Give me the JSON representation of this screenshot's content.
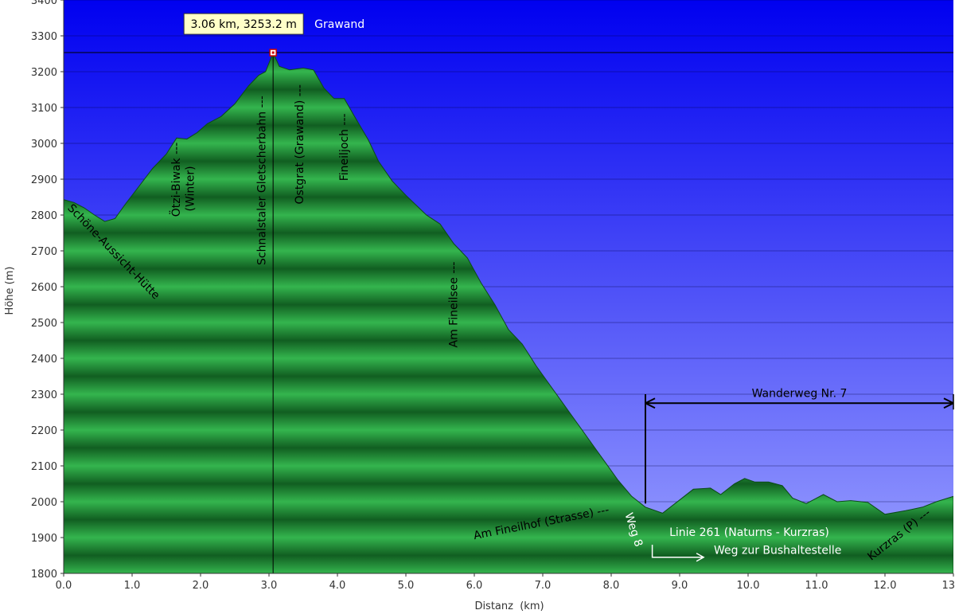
{
  "chart_data": {
    "type": "area",
    "xlabel": "Distanz  (km)",
    "ylabel": "Höhe (m)",
    "xlim": [
      0,
      13
    ],
    "ylim": [
      1800,
      3400
    ],
    "x_ticks": [
      "0.0",
      "1.0",
      "2.0",
      "3.0",
      "4.0",
      "5.0",
      "6.0",
      "7.0",
      "8.0",
      "9.0",
      "10.0",
      "11.0",
      "12.0",
      "13.0"
    ],
    "y_ticks": [
      "1800",
      "1900",
      "2000",
      "2100",
      "2200",
      "2300",
      "2400",
      "2500",
      "2600",
      "2700",
      "2800",
      "2900",
      "3000",
      "3100",
      "3200",
      "3300",
      "3400"
    ],
    "grid": true,
    "colors": {
      "sky_top": "#0000f0",
      "sky_bottom": "#9aa0ff",
      "profile_light": "#2fb04a",
      "profile_dark": "#0f5c1e"
    },
    "profile": [
      [
        0.0,
        2843
      ],
      [
        0.15,
        2835
      ],
      [
        0.3,
        2820
      ],
      [
        0.45,
        2800
      ],
      [
        0.6,
        2782
      ],
      [
        0.75,
        2790
      ],
      [
        0.9,
        2830
      ],
      [
        1.1,
        2880
      ],
      [
        1.3,
        2930
      ],
      [
        1.5,
        2970
      ],
      [
        1.65,
        3015
      ],
      [
        1.8,
        3012
      ],
      [
        1.95,
        3030
      ],
      [
        2.1,
        3055
      ],
      [
        2.3,
        3075
      ],
      [
        2.5,
        3110
      ],
      [
        2.7,
        3160
      ],
      [
        2.85,
        3190
      ],
      [
        2.95,
        3200
      ],
      [
        3.06,
        3253
      ],
      [
        3.15,
        3215
      ],
      [
        3.3,
        3205
      ],
      [
        3.5,
        3210
      ],
      [
        3.65,
        3205
      ],
      [
        3.8,
        3155
      ],
      [
        3.95,
        3125
      ],
      [
        4.1,
        3125
      ],
      [
        4.25,
        3075
      ],
      [
        4.45,
        3010
      ],
      [
        4.6,
        2950
      ],
      [
        4.8,
        2895
      ],
      [
        5.0,
        2855
      ],
      [
        5.3,
        2800
      ],
      [
        5.5,
        2775
      ],
      [
        5.7,
        2720
      ],
      [
        5.9,
        2680
      ],
      [
        6.1,
        2610
      ],
      [
        6.3,
        2550
      ],
      [
        6.5,
        2480
      ],
      [
        6.7,
        2440
      ],
      [
        6.9,
        2380
      ],
      [
        7.2,
        2300
      ],
      [
        7.5,
        2220
      ],
      [
        7.8,
        2140
      ],
      [
        8.1,
        2060
      ],
      [
        8.3,
        2015
      ],
      [
        8.5,
        1985
      ],
      [
        8.75,
        1968
      ],
      [
        9.0,
        2005
      ],
      [
        9.2,
        2035
      ],
      [
        9.45,
        2038
      ],
      [
        9.6,
        2020
      ],
      [
        9.8,
        2050
      ],
      [
        9.95,
        2065
      ],
      [
        10.1,
        2055
      ],
      [
        10.3,
        2055
      ],
      [
        10.5,
        2045
      ],
      [
        10.65,
        2010
      ],
      [
        10.85,
        1995
      ],
      [
        11.1,
        2020
      ],
      [
        11.3,
        2000
      ],
      [
        11.5,
        2003
      ],
      [
        11.75,
        1998
      ],
      [
        12.0,
        1965
      ],
      [
        12.3,
        1975
      ],
      [
        12.55,
        1985
      ],
      [
        12.75,
        2000
      ],
      [
        13.0,
        2015
      ]
    ],
    "marker": {
      "x": 3.06,
      "y": 3253.2,
      "label": "3.06 km, 3253.2 m",
      "name": "Grawand"
    },
    "annotations": [
      {
        "text": "Schöne-Aussicht-Hütte",
        "x": 0.05,
        "y": 2818,
        "rotate": 46,
        "color": "dark"
      },
      {
        "text": "Ötzi-Biwak ---",
        "x": 1.7,
        "y": 2795,
        "rotate": -90,
        "color": "dark"
      },
      {
        "text": "(Winter)",
        "x": 1.9,
        "y": 2810,
        "rotate": -90,
        "color": "dark"
      },
      {
        "text": "Schnalstaler Gletscherbahn ---",
        "x": 2.95,
        "y": 2660,
        "rotate": -90,
        "color": "dark"
      },
      {
        "text": "Ostgrat (Grawand) ---",
        "x": 3.5,
        "y": 2830,
        "rotate": -90,
        "color": "dark"
      },
      {
        "text": "Fineiljoch ---",
        "x": 4.15,
        "y": 2895,
        "rotate": -90,
        "color": "dark"
      },
      {
        "text": "Am Fineilsee ---",
        "x": 5.75,
        "y": 2430,
        "rotate": -90,
        "color": "dark"
      },
      {
        "text": "Am Fineilhof (Strasse) ---",
        "x": 6.0,
        "y": 1895,
        "rotate": -11,
        "color": "dark"
      },
      {
        "text": "Weg 8",
        "x": 8.2,
        "y": 1965,
        "rotate": 72,
        "color": "light"
      },
      {
        "text": "Linie 261 (Naturns - Kurzras)",
        "x": 8.85,
        "y": 1905,
        "rotate": 0,
        "color": "light"
      },
      {
        "text": "Weg zur Bushaltestelle",
        "x": 9.5,
        "y": 1855,
        "rotate": 0,
        "color": "light"
      },
      {
        "text": "Kurzras (P) ---",
        "x": 11.8,
        "y": 1835,
        "rotate": -38,
        "color": "dark"
      }
    ],
    "range_annotation": {
      "text": "Wanderweg Nr. 7",
      "x_start": 8.5,
      "x_end": 13.0,
      "y": 2275,
      "y_bottom": 1995,
      "y_top": 2300
    }
  }
}
